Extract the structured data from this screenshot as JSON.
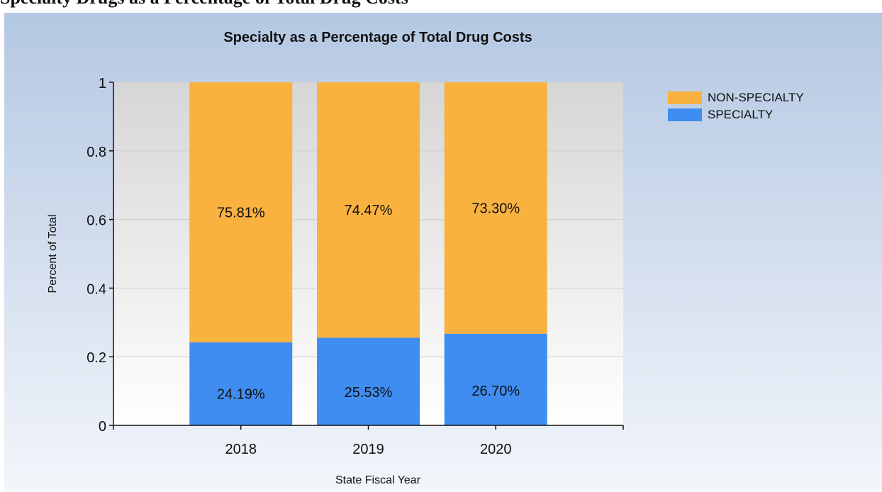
{
  "page": {
    "heading": "Specialty Drugs as a Percentage of Total Drug Costs"
  },
  "chart_data": {
    "type": "bar",
    "stacked": true,
    "title": "Specialty as a Percentage of Total Drug Costs",
    "xlabel": "State Fiscal Year",
    "ylabel": "Percent of Total",
    "categories": [
      "2018",
      "2019",
      "2020"
    ],
    "ylim": [
      0,
      1
    ],
    "yticks": [
      "0",
      "0.2",
      "0.4",
      "0.6",
      "0.8",
      "1"
    ],
    "series": [
      {
        "name": "SPECIALTY",
        "color": "#3f8df0",
        "values": [
          0.2419,
          0.2553,
          0.267
        ],
        "labels": [
          "24.19%",
          "25.53%",
          "26.70%"
        ]
      },
      {
        "name": "NON-SPECIALTY",
        "color": "#f9b13f",
        "values": [
          0.7581,
          0.7447,
          0.733
        ],
        "labels": [
          "75.81%",
          "74.47%",
          "73.30%"
        ]
      }
    ],
    "legend": {
      "placement": "right",
      "order": [
        "NON-SPECIALTY",
        "SPECIALTY"
      ]
    },
    "grid": true
  }
}
